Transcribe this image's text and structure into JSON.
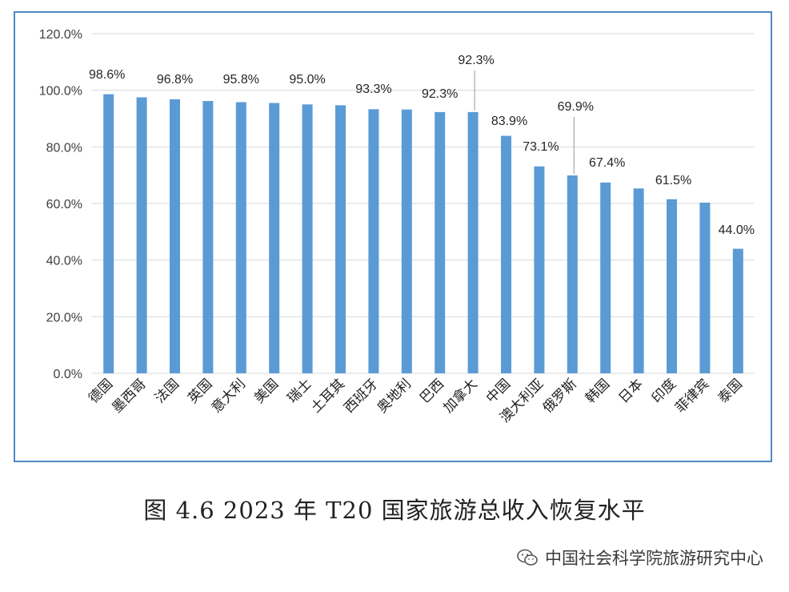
{
  "chart_data": {
    "type": "bar",
    "categories": [
      "德国",
      "墨西哥",
      "法国",
      "英国",
      "意大利",
      "美国",
      "瑞士",
      "土耳其",
      "西班牙",
      "奥地利",
      "巴西",
      "加拿大",
      "中国",
      "澳大利亚",
      "俄罗斯",
      "韩国",
      "日本",
      "印度",
      "菲律宾",
      "泰国"
    ],
    "values": [
      98.6,
      97.5,
      96.8,
      96.2,
      95.8,
      95.5,
      95.0,
      94.7,
      93.3,
      93.2,
      92.3,
      92.3,
      83.9,
      73.1,
      69.9,
      67.4,
      65.3,
      61.5,
      60.3,
      44.0
    ],
    "data_labels": [
      "98.6%",
      "",
      "96.8%",
      "",
      "95.8%",
      "",
      "95.0%",
      "",
      "93.3%",
      "",
      "92.3%",
      "92.3%",
      "83.9%",
      "73.1%",
      "69.9%",
      "67.4%",
      "",
      "61.5%",
      "",
      "44.0%"
    ],
    "y_ticks": [
      "0.0%",
      "20.0%",
      "40.0%",
      "60.0%",
      "80.0%",
      "100.0%",
      "120.0%"
    ],
    "ylim": [
      0,
      120
    ],
    "grid": true,
    "bar_color": "#5b9bd5",
    "frame_color": "#4f88c6"
  },
  "caption": "图 4.6 2023 年 T20 国家旅游总收入恢复水平",
  "watermark": "中国社会科学院旅游研究中心"
}
